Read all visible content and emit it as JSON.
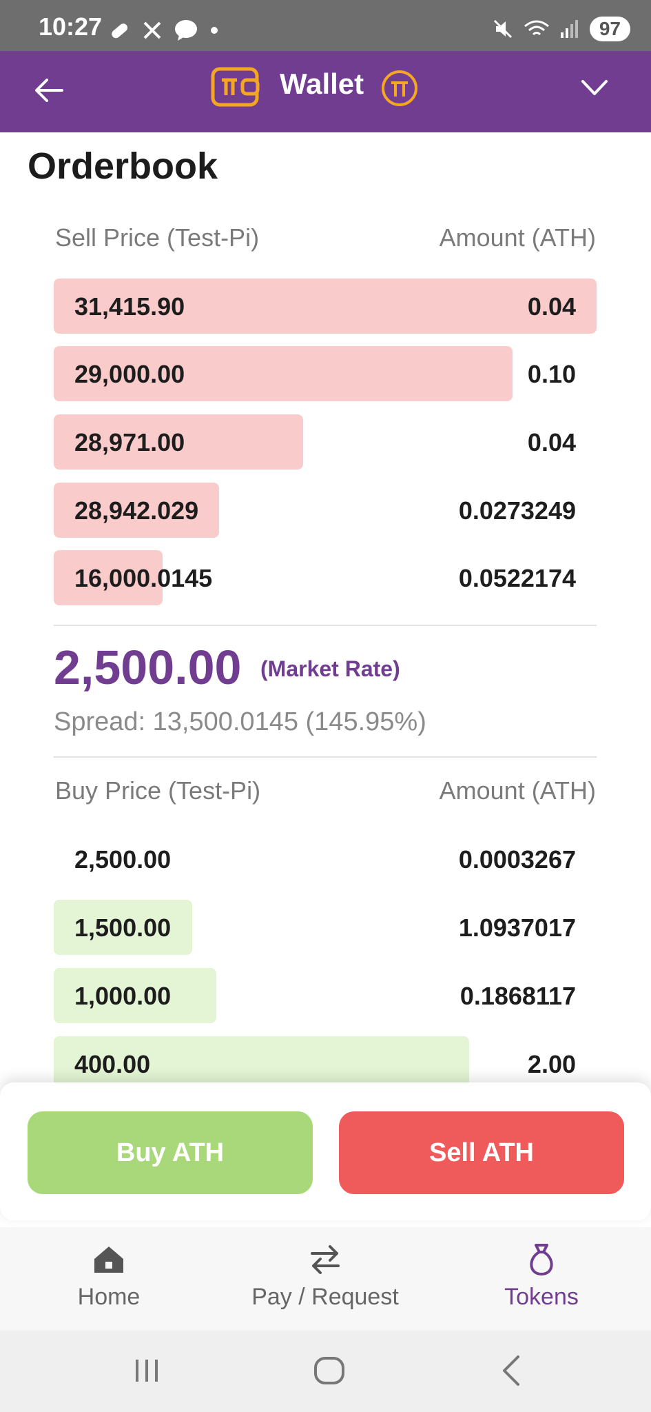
{
  "status_bar": {
    "time": "10:27",
    "battery": "97",
    "notification_icons": [
      "link-icon",
      "x-icon",
      "talk-icon",
      "dot-icon"
    ],
    "system_icons": [
      "mute-icon",
      "wifi-icon",
      "signal-icon"
    ]
  },
  "app_bar": {
    "title": "Wallet"
  },
  "orderbook": {
    "title": "Orderbook",
    "sell_header": {
      "price": "Sell Price (Test-Pi)",
      "amount": "Amount (ATH)"
    },
    "sell_orders": [
      {
        "price": "31,415.90",
        "amount": "0.04",
        "depth": 1.0
      },
      {
        "price": "29,000.00",
        "amount": "0.10",
        "depth": 0.845
      },
      {
        "price": "28,971.00",
        "amount": "0.04",
        "depth": 0.46
      },
      {
        "price": "28,942.029",
        "amount": "0.0273249",
        "depth": 0.305
      },
      {
        "price": "16,000.0145",
        "amount": "0.0522174",
        "depth": 0.2
      }
    ],
    "market": {
      "rate": "2,500.00",
      "label": "(Market Rate)",
      "spread": "Spread: 13,500.0145 (145.95%)"
    },
    "buy_header": {
      "price": "Buy Price (Test-Pi)",
      "amount": "Amount (ATH)"
    },
    "buy_orders": [
      {
        "price": "2,500.00",
        "amount": "0.0003267",
        "depth": 0.0
      },
      {
        "price": "1,500.00",
        "amount": "1.0937017",
        "depth": 0.255
      },
      {
        "price": "1,000.00",
        "amount": "0.1868117",
        "depth": 0.3
      },
      {
        "price": "400.00",
        "amount": "2.00",
        "depth": 0.765
      }
    ]
  },
  "actions": {
    "buy_label": "Buy ATH",
    "sell_label": "Sell ATH"
  },
  "bottom_nav": {
    "items": [
      {
        "label": "Home",
        "icon": "home-icon",
        "active": false
      },
      {
        "label": "Pay / Request",
        "icon": "swap-icon",
        "active": false
      },
      {
        "label": "Tokens",
        "icon": "money-bag-icon",
        "active": true
      }
    ]
  },
  "colors": {
    "brand_purple": "#703d91",
    "sell_red": "#ef5b5b",
    "buy_green": "#a8d879",
    "sell_bar": "#f9cccb",
    "buy_bar": "#e3f5d4",
    "accent_orange": "#f5a623"
  }
}
